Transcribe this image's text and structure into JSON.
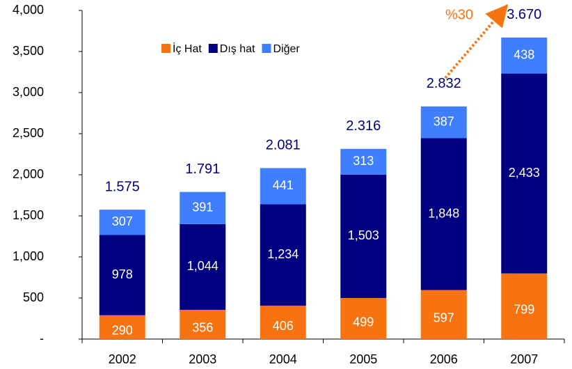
{
  "chart_data": {
    "type": "stacked_bar",
    "categories": [
      "2002",
      "2003",
      "2004",
      "2005",
      "2006",
      "2007"
    ],
    "series": [
      {
        "name": "İç Hat",
        "color": "#f7730f",
        "values": [
          290,
          356,
          406,
          499,
          597,
          799
        ]
      },
      {
        "name": "Dış hat",
        "color": "#000080",
        "values": [
          978,
          1044,
          1234,
          1503,
          1848,
          2433
        ],
        "value_labels": [
          "978",
          "1,044",
          "1,234",
          "1,503",
          "1,848",
          "2,433"
        ]
      },
      {
        "name": "Diğer",
        "color": "#3f7fff",
        "values": [
          307,
          391,
          441,
          313,
          387,
          438
        ]
      }
    ],
    "totals": {
      "values": [
        1575,
        1791,
        2081,
        2316,
        2832,
        3670
      ],
      "value_labels": [
        "1.575",
        "1.791",
        "2.081",
        "2.316",
        "2.832",
        "3.670"
      ]
    },
    "annotation": "%30",
    "ylim": [
      0,
      4000
    ],
    "yticks": [
      {
        "value": 0,
        "label": "-"
      },
      500,
      {
        "value": 1000,
        "label": "1,000"
      },
      {
        "value": 1500,
        "label": "1,500"
      },
      {
        "value": 2000,
        "label": "2,000"
      },
      {
        "value": 2500,
        "label": "2,500"
      },
      {
        "value": 3000,
        "label": "3,000"
      },
      {
        "value": 3500,
        "label": "3,500"
      },
      {
        "value": 4000,
        "label": "4,000"
      }
    ],
    "grid": false,
    "legend": "top"
  }
}
